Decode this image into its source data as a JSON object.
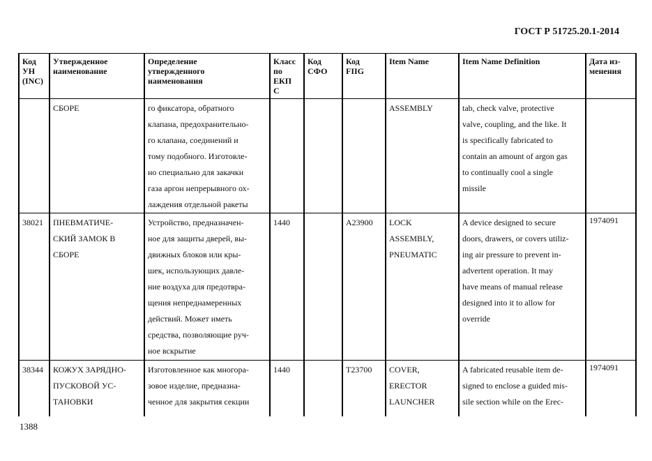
{
  "header": {
    "title": "ГОСТ Р 51725.20.1-2014"
  },
  "footer": {
    "page_number": "1388"
  },
  "table": {
    "columns": [
      "Код\nУН\n(INC)",
      "Утвержденное\nнаименование",
      "Определение\nутвержденного\nнаименования",
      "Класс\nпо\nЕКП\nС",
      "Код\nСФО",
      "Код\nFIIG",
      "Item Name",
      "Item Name Definition",
      "Дата из-\nменения"
    ],
    "rows": [
      {
        "inc": "",
        "name": "СБОРЕ",
        "definition": "го фиксатора, обратного\nклапана, предохранительно-\nго клапана, соединений и\nтому подобного. Изготовле-\nно специально для закачки\nгаза аргон непрерывного ох-\nлаждения отдельной ракеты",
        "class": "",
        "sfo": "",
        "fiig": "",
        "item_name": "ASSEMBLY",
        "item_def": "tab, check valve, protective\nvalve, coupling, and the like. It\nis specifically fabricated to\ncontain an amount of argon gas\nto continually cool a single\nmissile",
        "date": ""
      },
      {
        "inc": "38021",
        "name": "ПНЕВМАТИЧЕ-\nСКИЙ ЗАМОК В\nСБОРЕ",
        "definition": "Устройство, предназначен-\nное для защиты дверей, вы-\nдвижных блоков или кры-\nшек, использующих давле-\nние воздуха для предотвра-\nщения непреднамеренных\nдействий. Может иметь\nсредства, позволяющие руч-\nное вскрытие",
        "class": "1440",
        "sfo": "",
        "fiig": "A23900",
        "item_name": "LOCK\nASSEMBLY,\nPNEUMATIC",
        "item_def": "A device designed to secure\ndoors, drawers, or covers utiliz-\ning air pressure to prevent in-\nadvertent operation. It may\nhave means of manual release\ndesigned into it to allow for\noverride",
        "date": "1974091"
      },
      {
        "inc": "38344",
        "name": "КОЖУХ ЗАРЯДНО-\nПУСКОВОЙ УС-\nТАНОВКИ",
        "definition": "Изготовленное как многора-\nзовое изделие, предназна-\nченное для закрытия секции",
        "class": "1440",
        "sfo": "",
        "fiig": "T23700",
        "item_name": "COVER,\nERECTOR\nLAUNCHER",
        "item_def": "A fabricated reusable item de-\nsigned to enclose a guided mis-\nsile section while on the Erec-",
        "date": "1974091"
      }
    ]
  }
}
